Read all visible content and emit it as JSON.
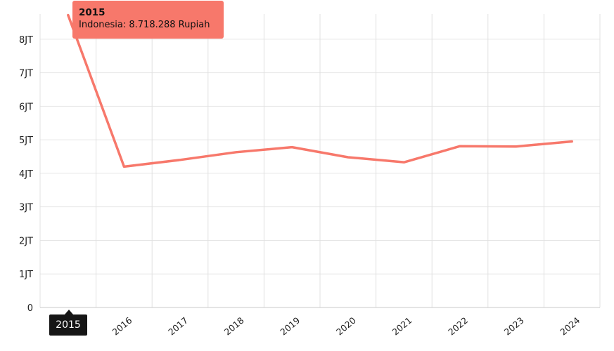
{
  "chart_data": {
    "type": "line",
    "categories": [
      "2015",
      "2016",
      "2017",
      "2018",
      "2019",
      "2020",
      "2021",
      "2022",
      "2023",
      "2024"
    ],
    "series": [
      {
        "name": "Indonesia",
        "color": "#f7786b",
        "values": [
          8718288,
          4200000,
          4400000,
          4630000,
          4780000,
          4480000,
          4330000,
          4810000,
          4800000,
          4950000
        ]
      }
    ],
    "y_ticks": [
      {
        "value": 0,
        "label": "0"
      },
      {
        "value": 1000000,
        "label": "1JT"
      },
      {
        "value": 2000000,
        "label": "2JT"
      },
      {
        "value": 3000000,
        "label": "3JT"
      },
      {
        "value": 4000000,
        "label": "4JT"
      },
      {
        "value": 5000000,
        "label": "5JT"
      },
      {
        "value": 6000000,
        "label": "6JT"
      },
      {
        "value": 7000000,
        "label": "7JT"
      },
      {
        "value": 8000000,
        "label": "8JT"
      }
    ],
    "ylim": [
      0,
      8750000
    ],
    "grid": true,
    "tooltip": {
      "title": "2015",
      "text": "Indonesia: 8.718.288 Rupiah"
    },
    "hover_label": "2015"
  }
}
